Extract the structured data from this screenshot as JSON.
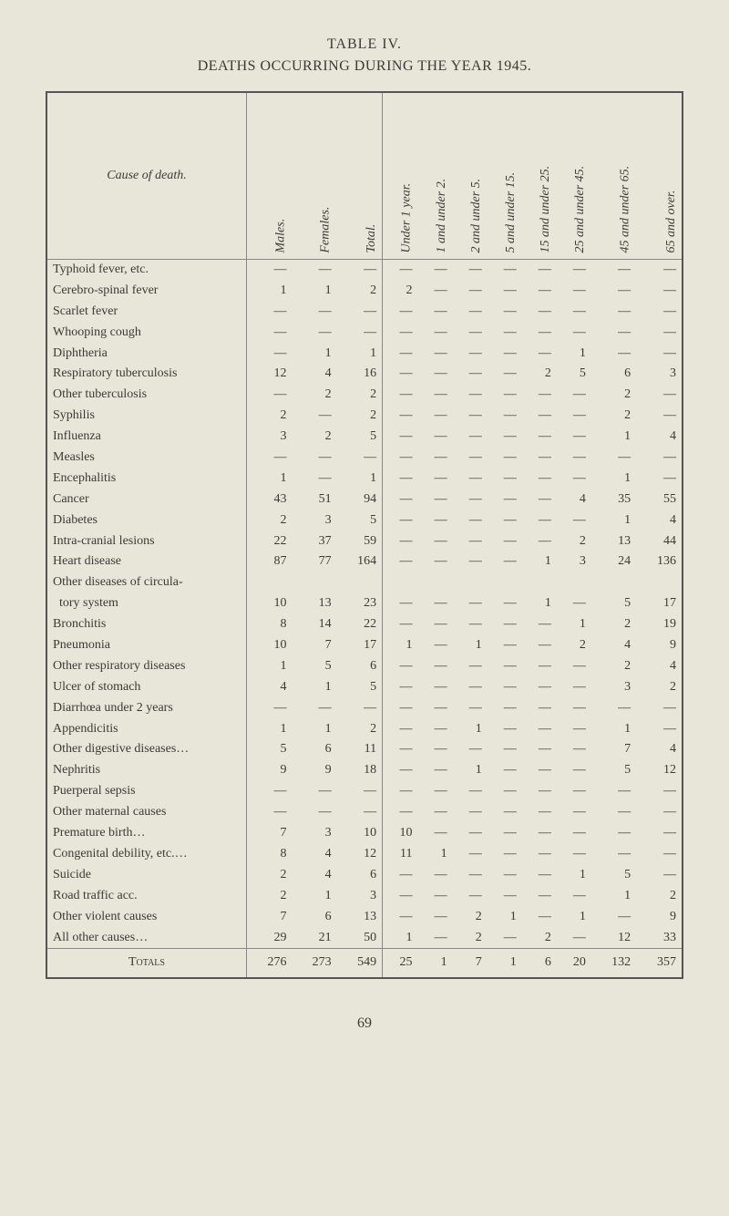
{
  "page": {
    "number": "69",
    "background_color": "#e8e6d8",
    "text_color": "#3a3a38"
  },
  "table": {
    "title": "TABLE IV.",
    "subtitle": "DEATHS OCCURRING DURING THE YEAR 1945.",
    "cause_header": "Cause of death.",
    "columns": [
      "Males.",
      "Females.",
      "Total.",
      "Under 1 year.",
      "1 and under 2.",
      "2 and under 5.",
      "5 and under 15.",
      "15 and under 25.",
      "25 and under 45.",
      "45 and under 65.",
      "65 and over."
    ],
    "dash": "—",
    "rows": [
      {
        "label": "Typhoid fever, etc.",
        "v": [
          "—",
          "—",
          "—",
          "—",
          "—",
          "—",
          "—",
          "—",
          "—",
          "—",
          "—"
        ]
      },
      {
        "label": "Cerebro-spinal fever",
        "v": [
          "1",
          "1",
          "2",
          "2",
          "—",
          "—",
          "—",
          "—",
          "—",
          "—",
          "—"
        ]
      },
      {
        "label": "Scarlet fever",
        "v": [
          "—",
          "—",
          "—",
          "—",
          "—",
          "—",
          "—",
          "—",
          "—",
          "—",
          "—"
        ]
      },
      {
        "label": "Whooping cough",
        "v": [
          "—",
          "—",
          "—",
          "—",
          "—",
          "—",
          "—",
          "—",
          "—",
          "—",
          "—"
        ]
      },
      {
        "label": "Diphtheria",
        "v": [
          "—",
          "1",
          "1",
          "—",
          "—",
          "—",
          "—",
          "—",
          "1",
          "—",
          "—"
        ]
      },
      {
        "label": "Respiratory tuberculosis",
        "v": [
          "12",
          "4",
          "16",
          "—",
          "—",
          "—",
          "—",
          "2",
          "5",
          "6",
          "3"
        ]
      },
      {
        "label": "Other tuberculosis",
        "v": [
          "—",
          "2",
          "2",
          "—",
          "—",
          "—",
          "—",
          "—",
          "—",
          "2",
          "—"
        ]
      },
      {
        "label": "Syphilis",
        "v": [
          "2",
          "—",
          "2",
          "—",
          "—",
          "—",
          "—",
          "—",
          "—",
          "2",
          "—"
        ]
      },
      {
        "label": "Influenza",
        "v": [
          "3",
          "2",
          "5",
          "—",
          "—",
          "—",
          "—",
          "—",
          "—",
          "1",
          "4"
        ]
      },
      {
        "label": "Measles",
        "v": [
          "—",
          "—",
          "—",
          "—",
          "—",
          "—",
          "—",
          "—",
          "—",
          "—",
          "—"
        ]
      },
      {
        "label": "Encephalitis",
        "v": [
          "1",
          "—",
          "1",
          "—",
          "—",
          "—",
          "—",
          "—",
          "—",
          "1",
          "—"
        ]
      },
      {
        "label": "Cancer",
        "v": [
          "43",
          "51",
          "94",
          "—",
          "—",
          "—",
          "—",
          "—",
          "4",
          "35",
          "55"
        ]
      },
      {
        "label": "Diabetes",
        "v": [
          "2",
          "3",
          "5",
          "—",
          "—",
          "—",
          "—",
          "—",
          "—",
          "1",
          "4"
        ]
      },
      {
        "label": "Intra-cranial lesions",
        "v": [
          "22",
          "37",
          "59",
          "—",
          "—",
          "—",
          "—",
          "—",
          "2",
          "13",
          "44"
        ]
      },
      {
        "label": "Heart disease",
        "v": [
          "87",
          "77",
          "164",
          "—",
          "—",
          "—",
          "—",
          "1",
          "3",
          "24",
          "136"
        ]
      },
      {
        "label": "Other diseases of circula-",
        "v": [
          "",
          "",
          "",
          "",
          "",
          "",
          "",
          "",
          "",
          "",
          ""
        ]
      },
      {
        "label": "  tory system",
        "v": [
          "10",
          "13",
          "23",
          "—",
          "—",
          "—",
          "—",
          "1",
          "—",
          "5",
          "17"
        ]
      },
      {
        "label": "Bronchitis",
        "v": [
          "8",
          "14",
          "22",
          "—",
          "—",
          "—",
          "—",
          "—",
          "1",
          "2",
          "19"
        ]
      },
      {
        "label": "Pneumonia",
        "v": [
          "10",
          "7",
          "17",
          "1",
          "—",
          "1",
          "—",
          "—",
          "2",
          "4",
          "9"
        ]
      },
      {
        "label": "Other respiratory diseases",
        "v": [
          "1",
          "5",
          "6",
          "—",
          "—",
          "—",
          "—",
          "—",
          "—",
          "2",
          "4"
        ]
      },
      {
        "label": "Ulcer of stomach",
        "v": [
          "4",
          "1",
          "5",
          "—",
          "—",
          "—",
          "—",
          "—",
          "—",
          "3",
          "2"
        ]
      },
      {
        "label": "Diarrhœa under 2 years",
        "v": [
          "—",
          "—",
          "—",
          "—",
          "—",
          "—",
          "—",
          "—",
          "—",
          "—",
          "—"
        ]
      },
      {
        "label": "Appendicitis",
        "v": [
          "1",
          "1",
          "2",
          "—",
          "—",
          "1",
          "—",
          "—",
          "—",
          "1",
          "—"
        ]
      },
      {
        "label": "Other digestive diseases…",
        "v": [
          "5",
          "6",
          "11",
          "—",
          "—",
          "—",
          "—",
          "—",
          "—",
          "7",
          "4"
        ]
      },
      {
        "label": "Nephritis",
        "v": [
          "9",
          "9",
          "18",
          "—",
          "—",
          "1",
          "—",
          "—",
          "—",
          "5",
          "12"
        ]
      },
      {
        "label": "Puerperal sepsis",
        "v": [
          "—",
          "—",
          "—",
          "—",
          "—",
          "—",
          "—",
          "—",
          "—",
          "—",
          "—"
        ]
      },
      {
        "label": "Other maternal causes",
        "v": [
          "—",
          "—",
          "—",
          "—",
          "—",
          "—",
          "—",
          "—",
          "—",
          "—",
          "—"
        ]
      },
      {
        "label": "Premature birth…",
        "v": [
          "7",
          "3",
          "10",
          "10",
          "—",
          "—",
          "—",
          "—",
          "—",
          "—",
          "—"
        ]
      },
      {
        "label": "Congenital debility, etc.…",
        "v": [
          "8",
          "4",
          "12",
          "11",
          "1",
          "—",
          "—",
          "—",
          "—",
          "—",
          "—"
        ]
      },
      {
        "label": "Suicide",
        "v": [
          "2",
          "4",
          "6",
          "—",
          "—",
          "—",
          "—",
          "—",
          "1",
          "5",
          "—"
        ]
      },
      {
        "label": "Road traffic acc.",
        "v": [
          "2",
          "1",
          "3",
          "—",
          "—",
          "—",
          "—",
          "—",
          "—",
          "1",
          "2"
        ]
      },
      {
        "label": "Other violent causes",
        "v": [
          "7",
          "6",
          "13",
          "—",
          "—",
          "2",
          "1",
          "—",
          "1",
          "—",
          "9"
        ]
      },
      {
        "label": "All other causes…",
        "v": [
          "29",
          "21",
          "50",
          "1",
          "—",
          "2",
          "—",
          "2",
          "—",
          "12",
          "33"
        ]
      }
    ],
    "totals": {
      "label": "Totals",
      "v": [
        "276",
        "273",
        "549",
        "25",
        "1",
        "7",
        "1",
        "6",
        "20",
        "132",
        "357"
      ]
    }
  }
}
